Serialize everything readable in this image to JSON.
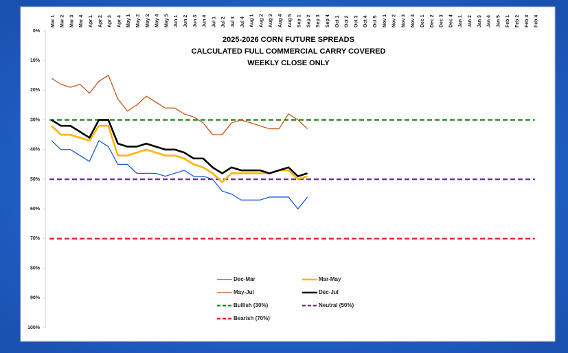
{
  "chart_data": {
    "type": "line",
    "title": [
      "2025-2026 CORN FUTURE SPREADS",
      "CALCULATED FULL COMMERCIAL CARRY COVERED",
      "WEEKLY CLOSE ONLY"
    ],
    "categories": [
      "Mar 1",
      "Mar 2",
      "Mar 3",
      "Mar 4",
      "Apr 1",
      "Apr 2",
      "Apr 3",
      "Apr 4",
      "May 1",
      "May 2",
      "May 3",
      "May 4",
      "May 5",
      "Jun 1",
      "Jun 2",
      "Jun 3",
      "Jun 4",
      "Jul 1",
      "Jul 2",
      "Jul 3",
      "Jul 4",
      "Aug 1",
      "Aug 2",
      "Aug 3",
      "Aug 4",
      "Aug 5",
      "Sep 1",
      "Sep 2",
      "Sep 3",
      "Sep 4",
      "Oct 1",
      "Oct 2",
      "Oct 3",
      "Oct 4",
      "Oct 5",
      "Nov 1",
      "Nov 2",
      "Nov 3",
      "Nov 4",
      "Dec 1",
      "Dec 2",
      "Dec 3",
      "Dec 4",
      "Jan 1",
      "Jan 2",
      "Jan 3",
      "Jan 4",
      "Jan 5",
      "Feb 1",
      "Feb 2",
      "Feb 3",
      "Feb 4"
    ],
    "series": [
      {
        "name": "Dec-Mar",
        "color": "#1f5fd6",
        "width": 1.3,
        "values": [
          37,
          40,
          40,
          42,
          44,
          37,
          39,
          45,
          45,
          48,
          48,
          48,
          49,
          48,
          47,
          49,
          49,
          50,
          54,
          55,
          57,
          57,
          57,
          56,
          56,
          56,
          60,
          56,
          null,
          null,
          null,
          null,
          null,
          null,
          null,
          null,
          null,
          null,
          null,
          null,
          null,
          null,
          null,
          null,
          null,
          null,
          null,
          null,
          null,
          null,
          null,
          null
        ]
      },
      {
        "name": "Mar-May",
        "color": "#ffb400",
        "width": 2.6,
        "values": [
          32,
          35,
          35,
          36,
          37,
          32,
          32,
          42,
          42,
          41,
          40,
          41,
          42,
          42,
          43,
          45,
          46,
          48,
          51,
          48,
          48,
          48,
          48,
          48,
          47,
          47,
          50,
          49,
          null,
          null,
          null,
          null,
          null,
          null,
          null,
          null,
          null,
          null,
          null,
          null,
          null,
          null,
          null,
          null,
          null,
          null,
          null,
          null,
          null,
          null,
          null,
          null
        ]
      },
      {
        "name": "May-Jul",
        "color": "#c0581c",
        "width": 1.3,
        "values": [
          16,
          18,
          19,
          18,
          21,
          17,
          15,
          23,
          27,
          25,
          22,
          24,
          26,
          26,
          28,
          29,
          31,
          35,
          35,
          31,
          30,
          31,
          32,
          33,
          33,
          28,
          30,
          33,
          null,
          null,
          null,
          null,
          null,
          null,
          null,
          null,
          null,
          null,
          null,
          null,
          null,
          null,
          null,
          null,
          null,
          null,
          null,
          null,
          null,
          null,
          null,
          null
        ]
      },
      {
        "name": "Dec-Jul",
        "color": "#000000",
        "width": 2.6,
        "values": [
          30,
          32,
          32,
          34,
          36,
          30,
          30,
          38,
          39,
          39,
          38,
          39,
          40,
          40,
          41,
          43,
          43,
          46,
          48,
          46,
          47,
          47,
          47,
          48,
          47,
          46,
          49,
          48,
          null,
          null,
          null,
          null,
          null,
          null,
          null,
          null,
          null,
          null,
          null,
          null,
          null,
          null,
          null,
          null,
          null,
          null,
          null,
          null,
          null,
          null,
          null,
          null
        ]
      }
    ],
    "hlines": [
      {
        "name": "Bullish (30%)",
        "color": "#1e8c1e",
        "value": 30
      },
      {
        "name": "Neutral (50%)",
        "color": "#7030a0",
        "value": 50
      },
      {
        "name": "Bearish (70%)",
        "color": "#e02020",
        "value": 70
      }
    ],
    "ylim": [
      0,
      100
    ],
    "y_inverted": true,
    "yticks": [
      {
        "value": 0,
        "label": "0%"
      },
      {
        "value": 10,
        "label": "10%"
      },
      {
        "value": 20,
        "label": "20%"
      },
      {
        "value": 30,
        "label": "30%"
      },
      {
        "value": 40,
        "label": "40%"
      },
      {
        "value": 50,
        "label": "50%"
      },
      {
        "value": 60,
        "label": "60%"
      },
      {
        "value": 70,
        "label": "70%"
      },
      {
        "value": 80,
        "label": "80%"
      },
      {
        "value": 90,
        "label": "90%"
      },
      {
        "value": 100,
        "label": "100%"
      }
    ]
  }
}
